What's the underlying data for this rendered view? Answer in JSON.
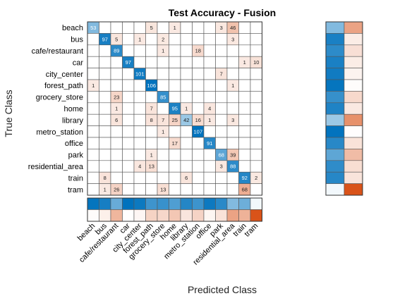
{
  "chart_data": {
    "type": "heatmap",
    "title": "Test Accuracy - Fusion",
    "xlabel": "Predicted Class",
    "ylabel": "True Class",
    "classes": [
      "beach",
      "bus",
      "cafe/restaurant",
      "car",
      "city_center",
      "forest_path",
      "grocery_store",
      "home",
      "library",
      "metro_station",
      "office",
      "park",
      "residential_area",
      "train",
      "tram"
    ],
    "matrix": [
      [
        53,
        0,
        0,
        0,
        0,
        5,
        0,
        1,
        0,
        0,
        0,
        3,
        46,
        0,
        0
      ],
      [
        0,
        97,
        5,
        0,
        1,
        0,
        2,
        0,
        0,
        0,
        0,
        0,
        3,
        0,
        0
      ],
      [
        0,
        0,
        89,
        0,
        0,
        0,
        1,
        0,
        0,
        18,
        0,
        0,
        0,
        0,
        0
      ],
      [
        0,
        0,
        0,
        97,
        0,
        0,
        0,
        0,
        0,
        0,
        0,
        0,
        0,
        1,
        10
      ],
      [
        0,
        0,
        0,
        0,
        101,
        0,
        0,
        0,
        0,
        0,
        0,
        7,
        0,
        0,
        0
      ],
      [
        1,
        0,
        0,
        0,
        0,
        106,
        0,
        0,
        0,
        0,
        0,
        0,
        1,
        0,
        0
      ],
      [
        0,
        0,
        23,
        0,
        0,
        0,
        85,
        0,
        0,
        0,
        0,
        0,
        0,
        0,
        0
      ],
      [
        0,
        0,
        1,
        0,
        0,
        7,
        0,
        95,
        1,
        0,
        4,
        0,
        0,
        0,
        0
      ],
      [
        0,
        0,
        6,
        0,
        0,
        8,
        7,
        25,
        42,
        16,
        1,
        0,
        3,
        0,
        0
      ],
      [
        0,
        0,
        0,
        0,
        0,
        0,
        1,
        0,
        0,
        107,
        0,
        0,
        0,
        0,
        0
      ],
      [
        0,
        0,
        0,
        0,
        0,
        0,
        0,
        17,
        0,
        0,
        91,
        0,
        0,
        0,
        0
      ],
      [
        0,
        0,
        0,
        0,
        0,
        1,
        0,
        0,
        0,
        0,
        0,
        68,
        39,
        0,
        0
      ],
      [
        0,
        0,
        0,
        0,
        4,
        13,
        0,
        0,
        0,
        0,
        0,
        3,
        88,
        0,
        0
      ],
      [
        0,
        8,
        0,
        0,
        0,
        0,
        0,
        0,
        6,
        0,
        0,
        0,
        0,
        92,
        2
      ],
      [
        0,
        1,
        26,
        0,
        0,
        0,
        13,
        0,
        0,
        0,
        0,
        0,
        0,
        68,
        0
      ]
    ],
    "summaries": [
      "row-summary",
      "column-summary"
    ],
    "colors": {
      "correct": "#0072BD",
      "incorrect": "#D95319",
      "background": "#ffffff",
      "gridline": "#555555"
    }
  }
}
